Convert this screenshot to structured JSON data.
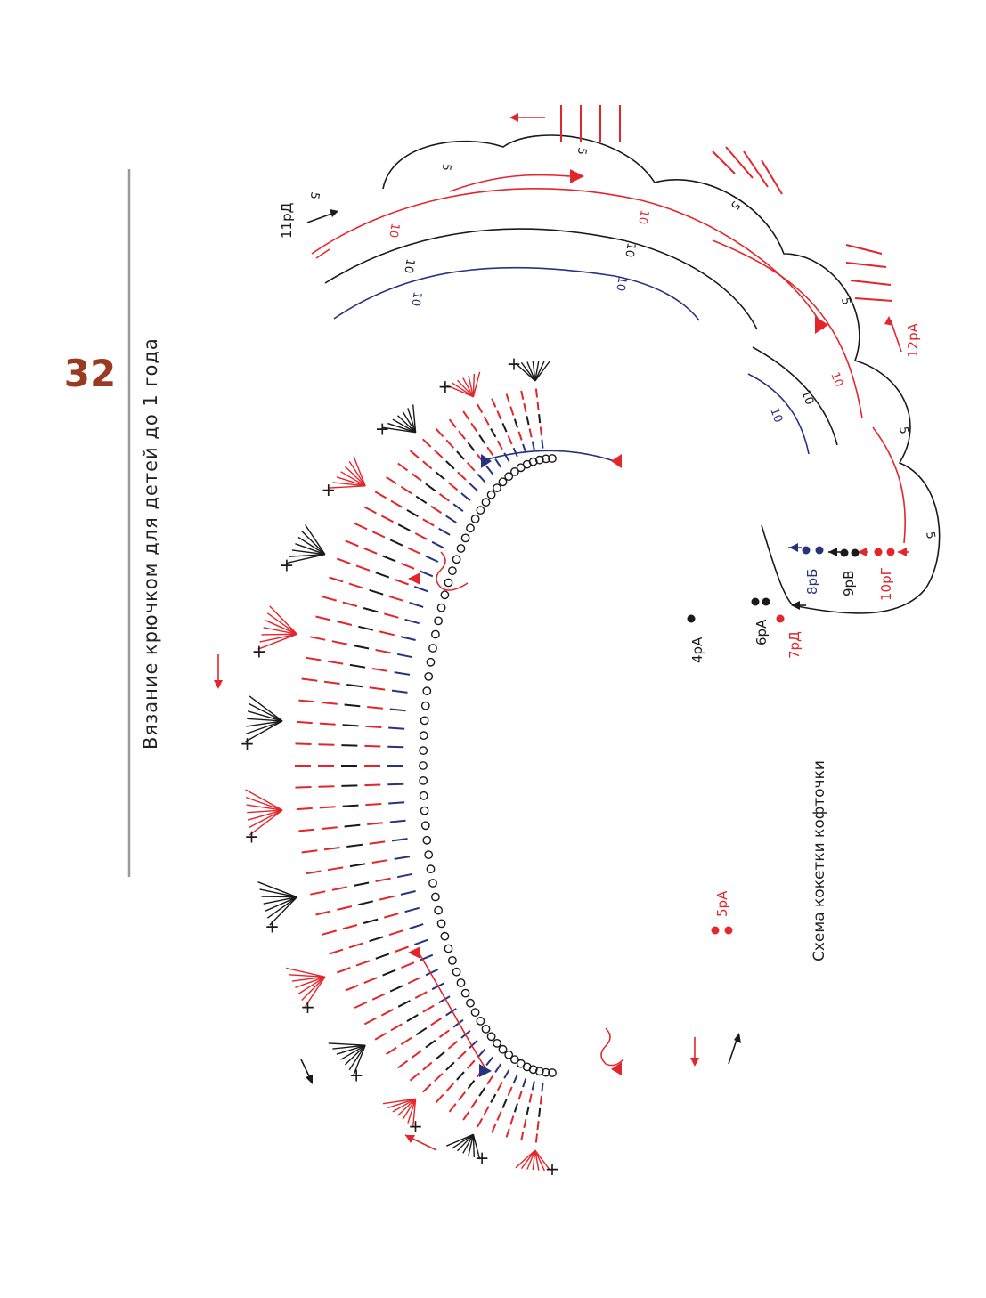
{
  "page": {
    "number": "32",
    "book_title": "Вязание крючком для детей до 1 года",
    "caption": "Схема кокетки кофточки"
  },
  "colors": {
    "red": "#e3262b",
    "blue": "#27337f",
    "black": "#1a1a1a",
    "page_number": "#9a3a22",
    "rule": "#9a9a9a"
  },
  "row_labels": {
    "r4": "4рА",
    "r5": "5рА",
    "r6": "6рА",
    "r7": "7рД",
    "r8": "8рБ",
    "r9": "9рВ",
    "r10": "10рГ",
    "r11": "11рД",
    "r12": "12рА"
  },
  "counts": {
    "five": "5",
    "ten": "10"
  }
}
